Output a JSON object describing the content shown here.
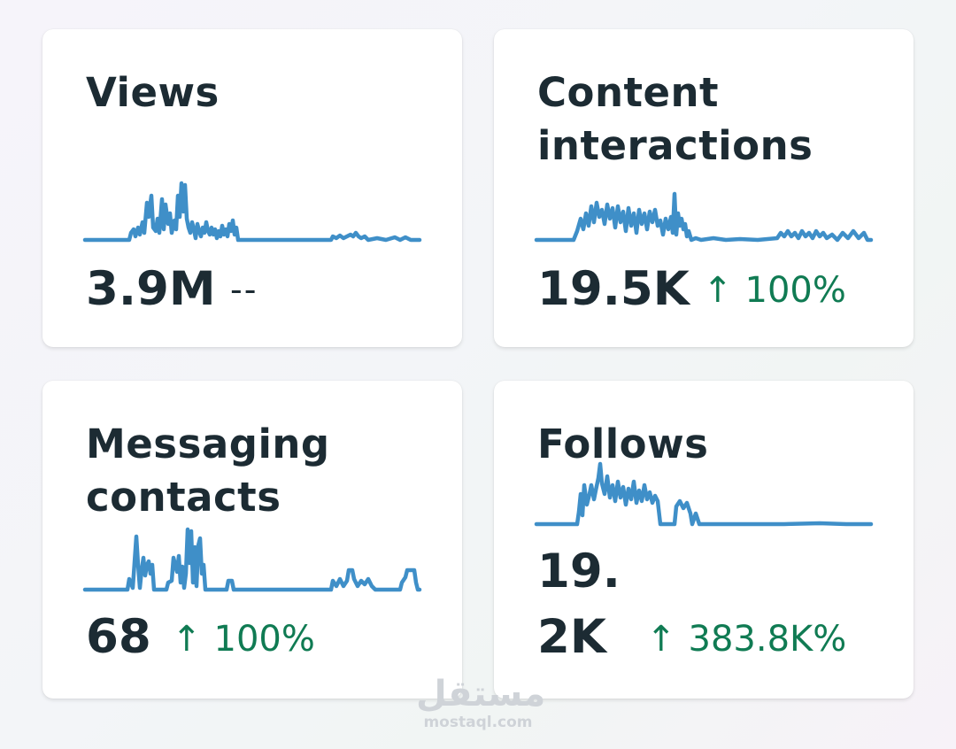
{
  "cards": {
    "views": {
      "title": "Views",
      "value": "3.9M",
      "change": "--"
    },
    "content_interactions": {
      "title": "Content interactions",
      "value": "19.5K",
      "arrow": "↑",
      "change": "100%"
    },
    "messaging_contacts": {
      "title": "Messaging contacts",
      "value": "68",
      "arrow": "↑",
      "change": "100%"
    },
    "follows": {
      "title": "Follows",
      "value_line1": "19.",
      "value_line2": "2K",
      "arrow": "↑",
      "change": "383.8K%"
    }
  },
  "watermark": {
    "logo": "مستقل",
    "text": "mostaql.com"
  },
  "colors": {
    "sparkline": "#3f8fc8",
    "positive": "#107b53",
    "text": "#1c2b33"
  }
}
